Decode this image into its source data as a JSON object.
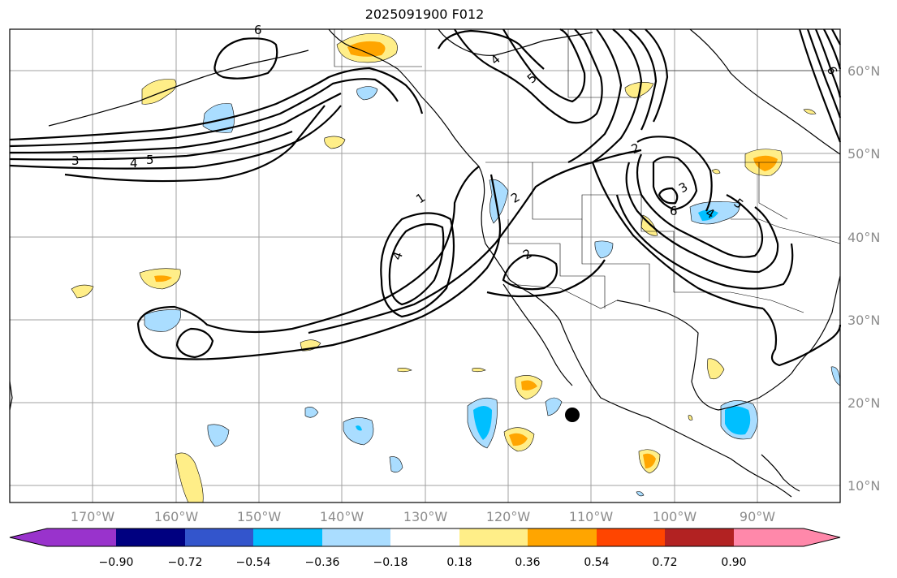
{
  "title": "2025091900 F012",
  "lon_labels": [
    "170°W",
    "160°W",
    "150°W",
    "140°W",
    "130°W",
    "120°W",
    "110°W",
    "100°W",
    "90°W"
  ],
  "lat_labels": [
    "60°N",
    "50°N",
    "40°N",
    "30°N",
    "20°N",
    "10°N"
  ],
  "colorbar": {
    "tick_labels": [
      "−0.90",
      "−0.72",
      "−0.54",
      "−0.36",
      "−0.18",
      "0.18",
      "0.36",
      "0.54",
      "0.72",
      "0.90"
    ],
    "colors": [
      "#9933cc",
      "#000080",
      "#3355cc",
      "#00bfff",
      "#aaddff",
      "#ffffff",
      "#ffee88",
      "#ffa500",
      "#ff4500",
      "#b22222",
      "#ff88aa",
      "#ff88aa"
    ]
  },
  "contour_labels": [
    "6",
    "4",
    "5",
    "3",
    "4",
    "5",
    "1",
    "2",
    "4",
    "2",
    "2",
    "3",
    "6",
    "4",
    "5",
    "6"
  ],
  "colors": {
    "pos_weak": "#ffee88",
    "pos_mid": "#ffa500",
    "neg_weak": "#aaddff",
    "neg_mid": "#00bfff",
    "marker": "#000000"
  }
}
